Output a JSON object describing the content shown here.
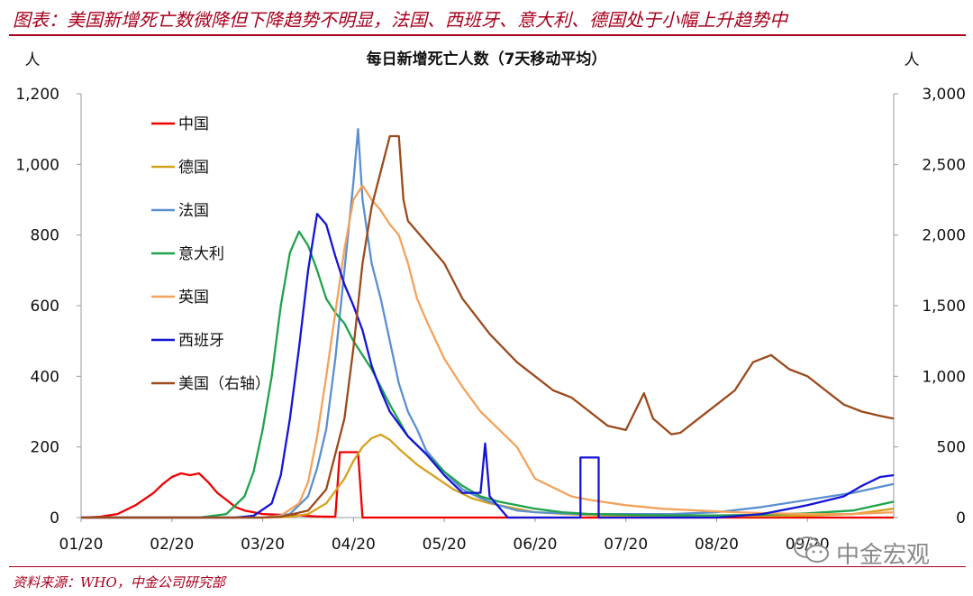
{
  "header": {
    "title": "图表：美国新增死亡数微降但下降趋势不明显，法国、西班牙、意大利、德国处于小幅上升趋势中"
  },
  "footer": {
    "source": "资料来源：WHO，中金公司研究部"
  },
  "watermark": {
    "text": "中金宏观",
    "icon": "wechat-icon"
  },
  "chart_data": {
    "type": "line",
    "title": "每日新增死亡人数（7天移动平均）",
    "ylabel_left": "人",
    "ylabel_right": "人",
    "x_ticks": [
      "01/20",
      "02/20",
      "03/20",
      "04/20",
      "05/20",
      "06/20",
      "07/20",
      "08/20",
      "09/20"
    ],
    "x_range": [
      0,
      8.95
    ],
    "y_left": {
      "ticks": [
        "0",
        "200",
        "400",
        "600",
        "800",
        "1,000",
        "1,200"
      ],
      "range": [
        0,
        1200
      ]
    },
    "y_right": {
      "ticks": [
        "0",
        "500",
        "1,000",
        "1,500",
        "2,000",
        "2,500",
        "3,000"
      ],
      "range": [
        0,
        3000
      ]
    },
    "legend_position": "left",
    "series": [
      {
        "name": "中国",
        "axis": "left",
        "color": "#ee0000",
        "points": [
          [
            0,
            0
          ],
          [
            0.2,
            2
          ],
          [
            0.4,
            10
          ],
          [
            0.6,
            35
          ],
          [
            0.8,
            70
          ],
          [
            0.9,
            95
          ],
          [
            1.0,
            115
          ],
          [
            1.1,
            125
          ],
          [
            1.2,
            120
          ],
          [
            1.3,
            125
          ],
          [
            1.4,
            100
          ],
          [
            1.5,
            70
          ],
          [
            1.6,
            50
          ],
          [
            1.7,
            30
          ],
          [
            1.8,
            20
          ],
          [
            1.9,
            15
          ],
          [
            2.0,
            10
          ],
          [
            2.2,
            8
          ],
          [
            2.4,
            6
          ],
          [
            2.6,
            3
          ],
          [
            2.8,
            2
          ],
          [
            2.85,
            185
          ],
          [
            3.05,
            185
          ],
          [
            3.1,
            0
          ],
          [
            3.5,
            0
          ],
          [
            4.5,
            0
          ],
          [
            8.95,
            0
          ]
        ]
      },
      {
        "name": "德国",
        "axis": "left",
        "color": "#d6a21e",
        "points": [
          [
            0,
            0
          ],
          [
            2.0,
            0
          ],
          [
            2.3,
            2
          ],
          [
            2.5,
            10
          ],
          [
            2.7,
            40
          ],
          [
            2.9,
            110
          ],
          [
            3.0,
            160
          ],
          [
            3.1,
            200
          ],
          [
            3.2,
            225
          ],
          [
            3.3,
            235
          ],
          [
            3.4,
            220
          ],
          [
            3.5,
            195
          ],
          [
            3.7,
            150
          ],
          [
            3.9,
            115
          ],
          [
            4.1,
            80
          ],
          [
            4.3,
            55
          ],
          [
            4.5,
            40
          ],
          [
            4.8,
            25
          ],
          [
            5.0,
            15
          ],
          [
            5.5,
            8
          ],
          [
            6.0,
            5
          ],
          [
            7.0,
            4
          ],
          [
            8.0,
            5
          ],
          [
            8.5,
            10
          ],
          [
            8.95,
            25
          ]
        ]
      },
      {
        "name": "法国",
        "axis": "left",
        "color": "#5b8fd1",
        "points": [
          [
            0,
            0
          ],
          [
            2.0,
            0
          ],
          [
            2.3,
            10
          ],
          [
            2.5,
            60
          ],
          [
            2.6,
            140
          ],
          [
            2.7,
            250
          ],
          [
            2.8,
            450
          ],
          [
            2.9,
            700
          ],
          [
            3.0,
            950
          ],
          [
            3.05,
            1100
          ],
          [
            3.1,
            900
          ],
          [
            3.2,
            720
          ],
          [
            3.3,
            620
          ],
          [
            3.4,
            500
          ],
          [
            3.5,
            380
          ],
          [
            3.6,
            300
          ],
          [
            3.7,
            250
          ],
          [
            3.8,
            190
          ],
          [
            4.0,
            130
          ],
          [
            4.2,
            80
          ],
          [
            4.4,
            55
          ],
          [
            4.6,
            35
          ],
          [
            4.8,
            20
          ],
          [
            5.0,
            15
          ],
          [
            5.5,
            10
          ],
          [
            6.0,
            10
          ],
          [
            6.5,
            10
          ],
          [
            7.0,
            15
          ],
          [
            7.5,
            30
          ],
          [
            8.0,
            50
          ],
          [
            8.5,
            70
          ],
          [
            8.95,
            95
          ]
        ]
      },
      {
        "name": "意大利",
        "axis": "left",
        "color": "#1fa34a",
        "points": [
          [
            0,
            0
          ],
          [
            1.3,
            0
          ],
          [
            1.6,
            10
          ],
          [
            1.8,
            60
          ],
          [
            1.9,
            130
          ],
          [
            2.0,
            250
          ],
          [
            2.1,
            400
          ],
          [
            2.2,
            600
          ],
          [
            2.3,
            750
          ],
          [
            2.4,
            810
          ],
          [
            2.5,
            770
          ],
          [
            2.6,
            700
          ],
          [
            2.7,
            620
          ],
          [
            2.8,
            580
          ],
          [
            2.9,
            550
          ],
          [
            3.0,
            500
          ],
          [
            3.2,
            420
          ],
          [
            3.4,
            320
          ],
          [
            3.6,
            230
          ],
          [
            3.8,
            180
          ],
          [
            4.0,
            130
          ],
          [
            4.2,
            90
          ],
          [
            4.4,
            60
          ],
          [
            4.6,
            45
          ],
          [
            4.8,
            35
          ],
          [
            5.0,
            25
          ],
          [
            5.3,
            15
          ],
          [
            5.6,
            10
          ],
          [
            6.0,
            8
          ],
          [
            6.5,
            6
          ],
          [
            7.0,
            6
          ],
          [
            7.5,
            8
          ],
          [
            8.0,
            12
          ],
          [
            8.5,
            20
          ],
          [
            8.95,
            45
          ]
        ]
      },
      {
        "name": "英国",
        "axis": "left",
        "color": "#f4a25b",
        "points": [
          [
            0,
            0
          ],
          [
            2.0,
            0
          ],
          [
            2.2,
            5
          ],
          [
            2.4,
            40
          ],
          [
            2.5,
            100
          ],
          [
            2.6,
            230
          ],
          [
            2.7,
            400
          ],
          [
            2.8,
            580
          ],
          [
            2.9,
            760
          ],
          [
            3.0,
            900
          ],
          [
            3.1,
            940
          ],
          [
            3.2,
            900
          ],
          [
            3.3,
            870
          ],
          [
            3.4,
            830
          ],
          [
            3.5,
            800
          ],
          [
            3.6,
            720
          ],
          [
            3.7,
            620
          ],
          [
            3.8,
            560
          ],
          [
            4.0,
            450
          ],
          [
            4.2,
            370
          ],
          [
            4.4,
            300
          ],
          [
            4.6,
            250
          ],
          [
            4.8,
            200
          ],
          [
            5.0,
            110
          ],
          [
            5.2,
            85
          ],
          [
            5.4,
            60
          ],
          [
            5.6,
            50
          ],
          [
            6.0,
            35
          ],
          [
            6.4,
            25
          ],
          [
            6.8,
            20
          ],
          [
            7.2,
            15
          ],
          [
            7.6,
            12
          ],
          [
            8.0,
            10
          ],
          [
            8.5,
            10
          ],
          [
            8.95,
            15
          ]
        ]
      },
      {
        "name": "西班牙",
        "axis": "left",
        "color": "#1414d6",
        "points": [
          [
            0,
            0
          ],
          [
            1.7,
            0
          ],
          [
            1.9,
            5
          ],
          [
            2.1,
            40
          ],
          [
            2.2,
            120
          ],
          [
            2.3,
            280
          ],
          [
            2.4,
            480
          ],
          [
            2.5,
            700
          ],
          [
            2.6,
            860
          ],
          [
            2.7,
            830
          ],
          [
            2.8,
            740
          ],
          [
            2.9,
            660
          ],
          [
            3.0,
            600
          ],
          [
            3.1,
            530
          ],
          [
            3.2,
            430
          ],
          [
            3.3,
            360
          ],
          [
            3.4,
            300
          ],
          [
            3.6,
            230
          ],
          [
            3.8,
            180
          ],
          [
            4.0,
            120
          ],
          [
            4.2,
            70
          ],
          [
            4.4,
            70
          ],
          [
            4.45,
            210
          ],
          [
            4.5,
            60
          ],
          [
            4.7,
            0
          ],
          [
            5.0,
            0
          ],
          [
            5.5,
            0
          ],
          [
            5.5,
            170
          ],
          [
            5.7,
            170
          ],
          [
            5.7,
            0
          ],
          [
            6.0,
            0
          ],
          [
            6.5,
            0
          ],
          [
            7.0,
            0
          ],
          [
            7.5,
            10
          ],
          [
            8.0,
            35
          ],
          [
            8.4,
            60
          ],
          [
            8.6,
            90
          ],
          [
            8.8,
            115
          ],
          [
            8.95,
            120
          ]
        ]
      },
      {
        "name": "美国（右轴）",
        "axis": "right",
        "color": "#9b4a1c",
        "points": [
          [
            0,
            0
          ],
          [
            2.0,
            0
          ],
          [
            2.2,
            5
          ],
          [
            2.5,
            50
          ],
          [
            2.7,
            200
          ],
          [
            2.9,
            700
          ],
          [
            3.0,
            1200
          ],
          [
            3.1,
            1800
          ],
          [
            3.2,
            2200
          ],
          [
            3.3,
            2450
          ],
          [
            3.4,
            2700
          ],
          [
            3.5,
            2700
          ],
          [
            3.55,
            2250
          ],
          [
            3.6,
            2100
          ],
          [
            3.8,
            1950
          ],
          [
            4.0,
            1800
          ],
          [
            4.2,
            1550
          ],
          [
            4.5,
            1300
          ],
          [
            4.8,
            1100
          ],
          [
            5.0,
            1000
          ],
          [
            5.2,
            900
          ],
          [
            5.4,
            850
          ],
          [
            5.6,
            750
          ],
          [
            5.8,
            650
          ],
          [
            6.0,
            620
          ],
          [
            6.2,
            880
          ],
          [
            6.3,
            700
          ],
          [
            6.5,
            590
          ],
          [
            6.6,
            600
          ],
          [
            6.8,
            700
          ],
          [
            7.0,
            800
          ],
          [
            7.2,
            900
          ],
          [
            7.4,
            1100
          ],
          [
            7.6,
            1150
          ],
          [
            7.8,
            1050
          ],
          [
            8.0,
            1000
          ],
          [
            8.2,
            900
          ],
          [
            8.4,
            800
          ],
          [
            8.6,
            750
          ],
          [
            8.8,
            720
          ],
          [
            8.95,
            700
          ]
        ]
      }
    ]
  }
}
